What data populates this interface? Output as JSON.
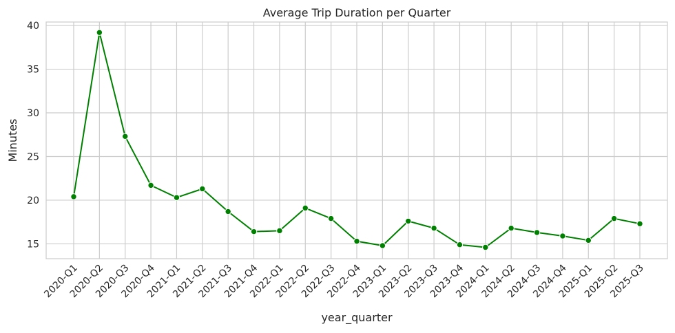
{
  "chart_data": {
    "type": "line",
    "title": "Average Trip Duration per Quarter",
    "xlabel": "year_quarter",
    "ylabel": "Minutes",
    "categories": [
      "2020-Q1",
      "2020-Q2",
      "2020-Q3",
      "2020-Q4",
      "2021-Q1",
      "2021-Q2",
      "2021-Q3",
      "2021-Q4",
      "2022-Q1",
      "2022-Q2",
      "2022-Q3",
      "2022-Q4",
      "2023-Q1",
      "2023-Q2",
      "2023-Q3",
      "2023-Q4",
      "2024-Q1",
      "2024-Q2",
      "2024-Q3",
      "2024-Q4",
      "2025-Q1",
      "2025-Q2",
      "2025-Q3"
    ],
    "series": [
      {
        "values": [
          20.4,
          39.2,
          27.3,
          21.7,
          20.3,
          21.3,
          18.7,
          16.4,
          16.5,
          19.1,
          17.9,
          15.3,
          14.8,
          17.6,
          16.8,
          14.9,
          14.6,
          16.8,
          16.3,
          15.9,
          15.4,
          17.9,
          17.3
        ],
        "color": "#008000"
      }
    ],
    "ylim": [
      13.3,
      40.4
    ],
    "yticks": [
      15,
      20,
      25,
      30,
      35,
      40
    ],
    "grid": true,
    "legend": "none"
  }
}
